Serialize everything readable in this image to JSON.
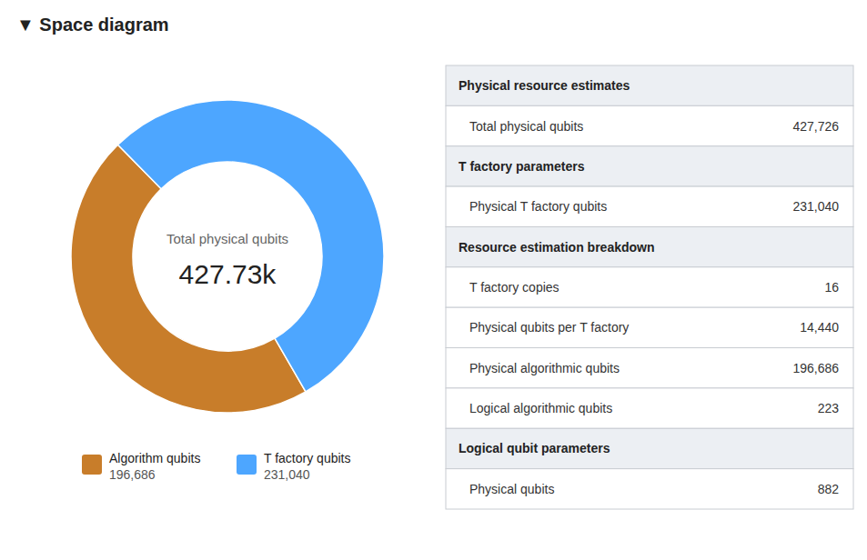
{
  "chart_data": [
    {
      "type": "pie",
      "title": "▼ Space diagram",
      "categories": [
        "Algorithm qubits",
        "T factory qubits"
      ],
      "values": [
        196686,
        231040
      ],
      "value_labels": [
        "196,686",
        "231,040"
      ],
      "colors": [
        "#c87d2a",
        "#4da6ff"
      ],
      "annotations": [
        "Total physical qubits",
        "427.73k"
      ],
      "legend": "bottom"
    },
    {
      "type": "table",
      "sections": [
        {
          "header": "Physical resource estimates",
          "rows": [
            [
              "Total physical qubits",
              "427,726"
            ]
          ]
        },
        {
          "header": "T factory parameters",
          "rows": [
            [
              "Physical T factory qubits",
              "231,040"
            ]
          ]
        },
        {
          "header": "Resource estimation breakdown",
          "rows": [
            [
              "T factory copies",
              "16"
            ],
            [
              "Physical qubits per T factory",
              "14,440"
            ],
            [
              "Physical algorithmic qubits",
              "196,686"
            ],
            [
              "Logical algorithmic qubits",
              "223"
            ]
          ]
        },
        {
          "header": "Logical qubit parameters",
          "rows": [
            [
              "Physical qubits",
              "882"
            ]
          ]
        }
      ]
    }
  ]
}
